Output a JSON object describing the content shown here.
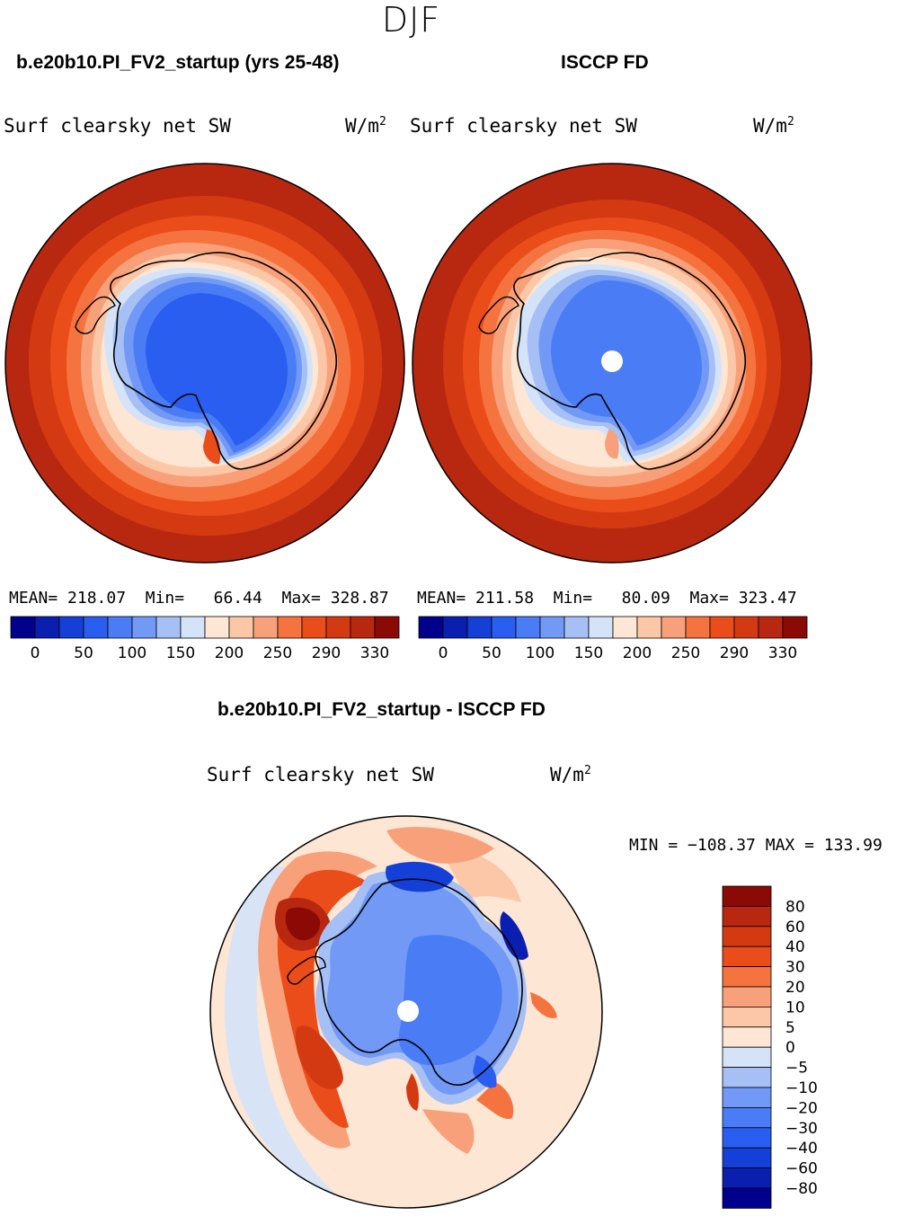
{
  "season": "DJF",
  "panels": [
    {
      "case": "b.e20b10.PI_FV2_startup (yrs 25-48)",
      "variable": "Surf clearsky net SW",
      "units": "W/m",
      "units_exp": "2",
      "stats": {
        "mean_label": "MEAN=",
        "mean": "218.07",
        "min_label": "Min=",
        "min": "66.44",
        "max_label": "Max=",
        "max": "328.87"
      }
    },
    {
      "case": "ISCCP FD",
      "variable": "Surf clearsky net SW",
      "units": "W/m",
      "units_exp": "2",
      "stats": {
        "mean_label": "MEAN=",
        "mean": "211.58",
        "min_label": "Min=",
        "min": "80.09",
        "max_label": "Max=",
        "max": "323.47"
      }
    }
  ],
  "diff_panel": {
    "title": "b.e20b10.PI_FV2_startup - ISCCP FD",
    "variable": "Surf clearsky net SW",
    "units": "W/m",
    "units_exp": "2",
    "min_label": "MIN =",
    "min": "−108.37",
    "max_label": "MAX =",
    "max": "133.99"
  },
  "colorbar_abs": {
    "colors": [
      "#00008c",
      "#0a1fb0",
      "#1540d8",
      "#2a5ef0",
      "#4a7cf5",
      "#7299f5",
      "#a6c0f5",
      "#d4e3f8",
      "#fde6d4",
      "#fcc7a6",
      "#f8a07a",
      "#f4733f",
      "#ea4d1a",
      "#d43a12",
      "#b82810",
      "#8c0a05"
    ],
    "tick_labels": [
      "0",
      "50",
      "100",
      "150",
      "200",
      "250",
      "290",
      "330"
    ]
  },
  "colorbar_diff": {
    "colors": [
      "#8c0a05",
      "#b82810",
      "#d43a12",
      "#ea4d1a",
      "#f4733f",
      "#f8a07a",
      "#fcc7a6",
      "#fde6d4",
      "#d4e3f8",
      "#a6c0f5",
      "#7299f5",
      "#4a7cf5",
      "#2a5ef0",
      "#1540d8",
      "#0a1fb0",
      "#00008c"
    ],
    "tick_labels": [
      "80",
      "60",
      "40",
      "30",
      "20",
      "10",
      "5",
      "0",
      "−5",
      "−10",
      "−20",
      "−30",
      "−40",
      "−60",
      "−80"
    ]
  }
}
